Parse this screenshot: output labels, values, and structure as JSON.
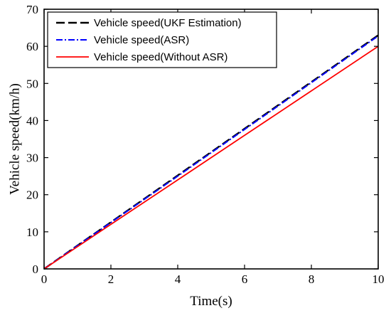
{
  "chart_data": {
    "type": "line",
    "title": "",
    "xlabel": "Time(s)",
    "ylabel": "Vehicle speed(km/h)",
    "xlim": [
      0,
      10
    ],
    "ylim": [
      0,
      70
    ],
    "xticks": [
      0,
      2,
      4,
      6,
      8,
      10
    ],
    "yticks": [
      0,
      10,
      20,
      30,
      40,
      50,
      60,
      70
    ],
    "grid": false,
    "legend_position": "top-left",
    "series": [
      {
        "name": "Vehicle speed(UKF Estimation)",
        "color": "#000000",
        "style": "dashed",
        "x": [
          0,
          2,
          4,
          6,
          8,
          10
        ],
        "y": [
          0,
          12.6,
          25.2,
          37.8,
          50.4,
          63.0
        ]
      },
      {
        "name": "Vehicle speed(ASR)",
        "color": "#0000ff",
        "style": "dash-dot",
        "x": [
          0,
          2,
          4,
          6,
          8,
          10
        ],
        "y": [
          0,
          12.5,
          25.0,
          37.6,
          50.2,
          62.8
        ]
      },
      {
        "name": "Vehicle speed(Without ASR)",
        "color": "#ff0000",
        "style": "solid",
        "x": [
          0,
          2,
          4,
          6,
          8,
          10
        ],
        "y": [
          0,
          12.0,
          24.0,
          36.0,
          48.0,
          60.0
        ]
      }
    ]
  }
}
